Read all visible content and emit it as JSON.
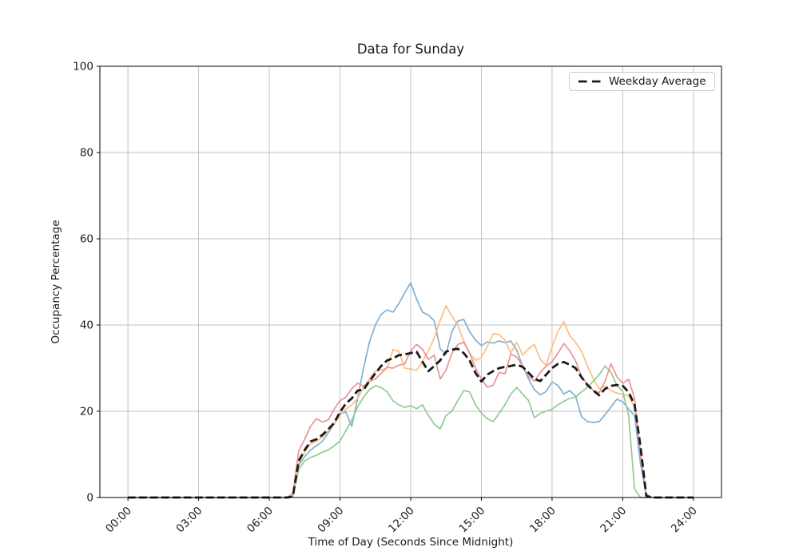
{
  "figure": {
    "title": "Data for Sunday",
    "xlabel": "Time of Day (Seconds Since Midnight)",
    "ylabel": "Occupancy Percentage",
    "legend_label": "Weekday Average"
  },
  "style": {
    "background": "#ffffff",
    "grid_color": "#bfbfbf",
    "spine_color": "#000000",
    "text_color": "#1a1a1a",
    "series_blue": "#7fb1d6",
    "series_orange": "#ffbc82",
    "series_green": "#8fcc8f",
    "series_red": "#e99495",
    "weekday_average": "#1a1a1a"
  },
  "chart_data": {
    "type": "line",
    "title": "Data for Sunday",
    "xlabel": "Time of Day (Seconds Since Midnight)",
    "ylabel": "Occupancy Percentage",
    "grid": true,
    "legend_position": "upper right",
    "ylim": [
      0,
      100
    ],
    "xlim_hours": [
      -1.19,
      25.19
    ],
    "y_ticks": [
      0,
      20,
      40,
      60,
      80,
      100
    ],
    "x_tick_hours": [
      0,
      3,
      6,
      9,
      12,
      15,
      18,
      21,
      24
    ],
    "x_tick_labels": [
      "00:00",
      "03:00",
      "06:00",
      "09:00",
      "12:00",
      "15:00",
      "18:00",
      "21:00",
      "24:00"
    ],
    "x_start_hours": 0,
    "x_step_hours": 0.25,
    "series": [
      {
        "name": "sunday-trace-blue",
        "style": "solid",
        "color": "#7fb1d6",
        "width": 1.7,
        "values": [
          0,
          0,
          0,
          0,
          0,
          0,
          0,
          0,
          0,
          0,
          0,
          0,
          0,
          0,
          0,
          0,
          0,
          0,
          0,
          0,
          0,
          0,
          0,
          0,
          0,
          0,
          0,
          0,
          0.5,
          7.5,
          9.5,
          11,
          12,
          13,
          15,
          17,
          19.5,
          19.8,
          16.5,
          23,
          30,
          36,
          40,
          42.5,
          43.5,
          43,
          45,
          47.5,
          49.8,
          46,
          43,
          42.3,
          41,
          34.5,
          33.2,
          38.5,
          40.9,
          41.3,
          38.5,
          36.5,
          35.2,
          36.1,
          35.8,
          36.3,
          35.9,
          36.3,
          34.2,
          30.5,
          27.5,
          25,
          23.8,
          24.6,
          26.8,
          26,
          24,
          24.8,
          23.5,
          18.8,
          17.6,
          17.4,
          17.6,
          19.2,
          21,
          22.8,
          22.2,
          20.5,
          19,
          8,
          0.3,
          0,
          0,
          0,
          0,
          0,
          0,
          0,
          0
        ]
      },
      {
        "name": "sunday-trace-orange",
        "style": "solid",
        "color": "#ffbc82",
        "width": 1.7,
        "values": [
          0,
          0,
          0,
          0,
          0,
          0,
          0,
          0,
          0,
          0,
          0,
          0,
          0,
          0,
          0,
          0,
          0,
          0,
          0,
          0,
          0,
          0,
          0,
          0,
          0,
          0,
          0,
          0,
          0.5,
          8,
          10.5,
          12.5,
          13,
          14,
          15.5,
          17,
          19,
          20.5,
          21.5,
          23,
          25.5,
          27.5,
          29.3,
          29.6,
          30,
          34.3,
          33.9,
          30,
          29.8,
          29.5,
          31.5,
          34,
          37,
          41,
          44.5,
          42,
          40,
          36.3,
          33.5,
          31.8,
          32.5,
          35,
          38,
          37.8,
          36.5,
          33.5,
          36,
          33,
          34.5,
          35.5,
          32,
          30.7,
          35,
          38.5,
          40.8,
          37.5,
          36,
          33.9,
          30.5,
          27.5,
          25.2,
          25.9,
          24.8,
          24.2,
          24,
          23.5,
          21,
          11,
          0.3,
          0,
          0,
          0,
          0,
          0,
          0,
          0,
          0
        ]
      },
      {
        "name": "sunday-trace-green",
        "style": "solid",
        "color": "#8fcc8f",
        "width": 1.7,
        "values": [
          0,
          0,
          0,
          0,
          0,
          0,
          0,
          0,
          0,
          0,
          0,
          0,
          0,
          0,
          0,
          0,
          0,
          0,
          0,
          0,
          0,
          0,
          0,
          0,
          0,
          0,
          0,
          0,
          0.3,
          6.5,
          8.5,
          9.3,
          9.8,
          10.5,
          11,
          12,
          13.1,
          15.5,
          18,
          21,
          23.3,
          25,
          25.9,
          25.5,
          24.5,
          22.4,
          21.5,
          20.9,
          21.3,
          20.6,
          21.5,
          19.1,
          17,
          15.9,
          19,
          20,
          22.5,
          24.8,
          24.5,
          21.5,
          19.6,
          18.3,
          17.6,
          19.5,
          21.5,
          24,
          25.5,
          24,
          22.5,
          18.5,
          19.5,
          20,
          20.5,
          21.5,
          22.3,
          23,
          23.3,
          24.5,
          25.5,
          27,
          28.5,
          30.5,
          29,
          26,
          24.6,
          19,
          2,
          0,
          0,
          0,
          0,
          0,
          0,
          0,
          0,
          0,
          0
        ]
      },
      {
        "name": "sunday-trace-red",
        "style": "solid",
        "color": "#e99495",
        "width": 1.7,
        "values": [
          0,
          0,
          0,
          0,
          0,
          0,
          0,
          0,
          0,
          0,
          0,
          0,
          0,
          0,
          0,
          0,
          0,
          0,
          0,
          0,
          0,
          0,
          0,
          0,
          0,
          0,
          0,
          0,
          1,
          10.8,
          13.5,
          16.5,
          18.3,
          17.5,
          18,
          20.5,
          22.4,
          23.3,
          25.2,
          26.5,
          25.8,
          26.9,
          27.5,
          28.8,
          30.2,
          30,
          30.7,
          31,
          34,
          35.5,
          34.4,
          32,
          33,
          27.5,
          29.5,
          33.5,
          35.5,
          36,
          33.5,
          30,
          27.5,
          25.6,
          26,
          29,
          28.7,
          33.3,
          32.6,
          30.5,
          28,
          27,
          29,
          30.5,
          31.5,
          33.5,
          35.7,
          34,
          31.7,
          28,
          26.3,
          24.8,
          24.3,
          27,
          31,
          28,
          26.5,
          27.4,
          23,
          10,
          0.2,
          0,
          0,
          0,
          0,
          0,
          0,
          0,
          0
        ]
      },
      {
        "name": "weekday-average",
        "style": "dashed",
        "color": "#1a1a1a",
        "width": 2.8,
        "values": [
          0,
          0,
          0,
          0,
          0,
          0,
          0,
          0,
          0,
          0,
          0,
          0,
          0,
          0,
          0,
          0,
          0,
          0,
          0,
          0,
          0,
          0,
          0,
          0,
          0,
          0,
          0,
          0,
          0.2,
          8.5,
          11,
          13,
          13.5,
          14.5,
          15.8,
          17.3,
          19.8,
          21.8,
          23,
          24.8,
          25,
          27,
          28.8,
          30.5,
          31.8,
          32.3,
          33,
          33.2,
          33.5,
          33.8,
          31.5,
          29.3,
          30.5,
          31.8,
          33.8,
          34.3,
          34.5,
          33.5,
          31.8,
          28.9,
          26.9,
          28.5,
          29.3,
          30,
          30.3,
          30.5,
          30.8,
          30.3,
          28.9,
          27.5,
          27,
          28.5,
          30,
          31,
          31.4,
          30.8,
          30,
          27.9,
          26.1,
          24.8,
          23.7,
          25.2,
          25.9,
          26.1,
          25.9,
          24.4,
          21.5,
          12,
          0.4,
          0,
          0,
          0,
          0,
          0,
          0,
          0,
          0
        ]
      }
    ]
  }
}
